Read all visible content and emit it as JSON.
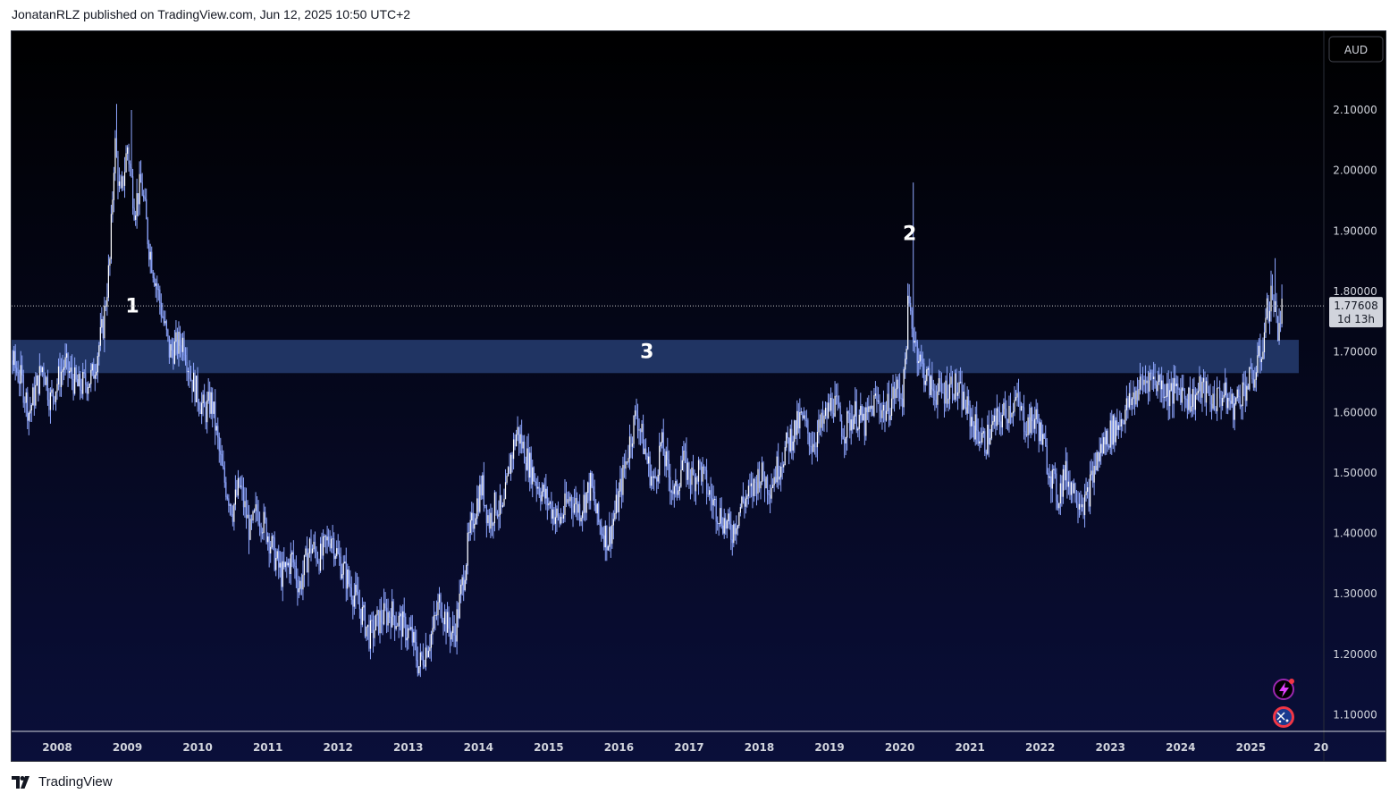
{
  "header": {
    "text": "JonatanRLZ published on TradingView.com, Jun 12, 2025 10:50 UTC+2"
  },
  "footer": {
    "brand": "TradingView",
    "logo_icon": "tradingview-logo-icon"
  },
  "chart": {
    "currency_button": "AUD",
    "price_tag": {
      "price": "1.77608",
      "countdown": "1d 13h"
    },
    "icons": [
      "lightning-alert-icon",
      "australia-flag-icon"
    ],
    "colors": {
      "background_top": "#000000",
      "background_bottom": "#0a0f3a",
      "candles": "#8fa7ff",
      "zone": "#243a6b",
      "text": "#d1d4dc"
    }
  },
  "chart_data": {
    "type": "candlestick",
    "title": "",
    "xlabel": "",
    "ylabel": "",
    "x_ticks": [
      "2008",
      "2009",
      "2010",
      "2011",
      "2012",
      "2013",
      "2014",
      "2015",
      "2016",
      "2017",
      "2018",
      "2019",
      "2020",
      "2021",
      "2022",
      "2023",
      "2024",
      "2025",
      "20"
    ],
    "y_ticks": [
      "2.10000",
      "2.00000",
      "1.90000",
      "1.80000",
      "1.70000",
      "1.60000",
      "1.50000",
      "1.40000",
      "1.30000",
      "1.20000",
      "1.10000"
    ],
    "ylim": [
      1.0,
      2.2
    ],
    "last_price": 1.77608,
    "zone": {
      "label": "3",
      "low": 1.665,
      "high": 1.72
    },
    "annotations": [
      {
        "label": "1",
        "x": 2009.07,
        "y": 1.765
      },
      {
        "label": "2",
        "x": 2020.14,
        "y": 1.885
      },
      {
        "label": "3",
        "x": 2016.4,
        "y": 1.69
      }
    ],
    "price_path": [
      [
        2007.0,
        1.63
      ],
      [
        2007.2,
        1.57
      ],
      [
        2007.3,
        1.7
      ],
      [
        2007.5,
        1.65
      ],
      [
        2007.6,
        1.6
      ],
      [
        2007.8,
        1.68
      ],
      [
        2007.9,
        1.62
      ],
      [
        2008.1,
        1.68
      ],
      [
        2008.3,
        1.64
      ],
      [
        2008.5,
        1.66
      ],
      [
        2008.65,
        1.74
      ],
      [
        2008.75,
        1.85
      ],
      [
        2008.82,
        2.05
      ],
      [
        2008.9,
        1.95
      ],
      [
        2009.0,
        2.04
      ],
      [
        2009.1,
        1.94
      ],
      [
        2009.2,
        1.98
      ],
      [
        2009.3,
        1.88
      ],
      [
        2009.4,
        1.82
      ],
      [
        2009.5,
        1.76
      ],
      [
        2009.6,
        1.7
      ],
      [
        2009.8,
        1.72
      ],
      [
        2009.9,
        1.66
      ],
      [
        2010.1,
        1.6
      ],
      [
        2010.2,
        1.62
      ],
      [
        2010.35,
        1.5
      ],
      [
        2010.5,
        1.44
      ],
      [
        2010.6,
        1.48
      ],
      [
        2010.75,
        1.4
      ],
      [
        2010.85,
        1.44
      ],
      [
        2011.0,
        1.4
      ],
      [
        2011.1,
        1.36
      ],
      [
        2011.2,
        1.33
      ],
      [
        2011.35,
        1.36
      ],
      [
        2011.45,
        1.31
      ],
      [
        2011.6,
        1.38
      ],
      [
        2011.75,
        1.36
      ],
      [
        2011.9,
        1.4
      ],
      [
        2012.0,
        1.36
      ],
      [
        2012.15,
        1.32
      ],
      [
        2012.3,
        1.28
      ],
      [
        2012.45,
        1.23
      ],
      [
        2012.6,
        1.26
      ],
      [
        2012.75,
        1.27
      ],
      [
        2012.9,
        1.25
      ],
      [
        2013.05,
        1.23
      ],
      [
        2013.15,
        1.18
      ],
      [
        2013.25,
        1.21
      ],
      [
        2013.35,
        1.24
      ],
      [
        2013.45,
        1.29
      ],
      [
        2013.55,
        1.25
      ],
      [
        2013.65,
        1.23
      ],
      [
        2013.75,
        1.3
      ],
      [
        2013.85,
        1.38
      ],
      [
        2013.95,
        1.44
      ],
      [
        2014.05,
        1.48
      ],
      [
        2014.15,
        1.42
      ],
      [
        2014.25,
        1.45
      ],
      [
        2014.35,
        1.43
      ],
      [
        2014.45,
        1.52
      ],
      [
        2014.55,
        1.57
      ],
      [
        2014.7,
        1.52
      ],
      [
        2014.85,
        1.48
      ],
      [
        2015.0,
        1.45
      ],
      [
        2015.15,
        1.42
      ],
      [
        2015.3,
        1.46
      ],
      [
        2015.45,
        1.44
      ],
      [
        2015.6,
        1.48
      ],
      [
        2015.7,
        1.42
      ],
      [
        2015.85,
        1.39
      ],
      [
        2016.0,
        1.46
      ],
      [
        2016.15,
        1.55
      ],
      [
        2016.25,
        1.6
      ],
      [
        2016.4,
        1.52
      ],
      [
        2016.5,
        1.48
      ],
      [
        2016.6,
        1.55
      ],
      [
        2016.7,
        1.5
      ],
      [
        2016.8,
        1.46
      ],
      [
        2016.9,
        1.52
      ],
      [
        2017.05,
        1.49
      ],
      [
        2017.15,
        1.51
      ],
      [
        2017.3,
        1.46
      ],
      [
        2017.45,
        1.43
      ],
      [
        2017.6,
        1.4
      ],
      [
        2017.75,
        1.45
      ],
      [
        2017.9,
        1.47
      ],
      [
        2018.0,
        1.5
      ],
      [
        2018.15,
        1.48
      ],
      [
        2018.3,
        1.52
      ],
      [
        2018.45,
        1.56
      ],
      [
        2018.6,
        1.59
      ],
      [
        2018.75,
        1.55
      ],
      [
        2018.9,
        1.58
      ],
      [
        2019.05,
        1.62
      ],
      [
        2019.2,
        1.57
      ],
      [
        2019.35,
        1.6
      ],
      [
        2019.5,
        1.58
      ],
      [
        2019.65,
        1.62
      ],
      [
        2019.8,
        1.6
      ],
      [
        2019.95,
        1.64
      ],
      [
        2020.05,
        1.63
      ],
      [
        2020.12,
        1.78
      ],
      [
        2020.18,
        1.74
      ],
      [
        2020.3,
        1.68
      ],
      [
        2020.45,
        1.64
      ],
      [
        2020.6,
        1.63
      ],
      [
        2020.75,
        1.65
      ],
      [
        2020.9,
        1.62
      ],
      [
        2021.05,
        1.58
      ],
      [
        2021.2,
        1.55
      ],
      [
        2021.35,
        1.58
      ],
      [
        2021.5,
        1.6
      ],
      [
        2021.65,
        1.62
      ],
      [
        2021.8,
        1.58
      ],
      [
        2021.95,
        1.59
      ],
      [
        2022.1,
        1.52
      ],
      [
        2022.25,
        1.46
      ],
      [
        2022.35,
        1.5
      ],
      [
        2022.5,
        1.47
      ],
      [
        2022.65,
        1.45
      ],
      [
        2022.8,
        1.52
      ],
      [
        2022.95,
        1.56
      ],
      [
        2023.1,
        1.58
      ],
      [
        2023.25,
        1.61
      ],
      [
        2023.4,
        1.64
      ],
      [
        2023.55,
        1.66
      ],
      [
        2023.7,
        1.65
      ],
      [
        2023.85,
        1.63
      ],
      [
        2024.0,
        1.64
      ],
      [
        2024.15,
        1.62
      ],
      [
        2024.3,
        1.64
      ],
      [
        2024.45,
        1.62
      ],
      [
        2024.6,
        1.63
      ],
      [
        2024.75,
        1.61
      ],
      [
        2024.9,
        1.64
      ],
      [
        2025.05,
        1.66
      ],
      [
        2025.15,
        1.7
      ],
      [
        2025.22,
        1.76
      ],
      [
        2025.3,
        1.8
      ],
      [
        2025.38,
        1.74
      ],
      [
        2025.45,
        1.776
      ]
    ]
  }
}
